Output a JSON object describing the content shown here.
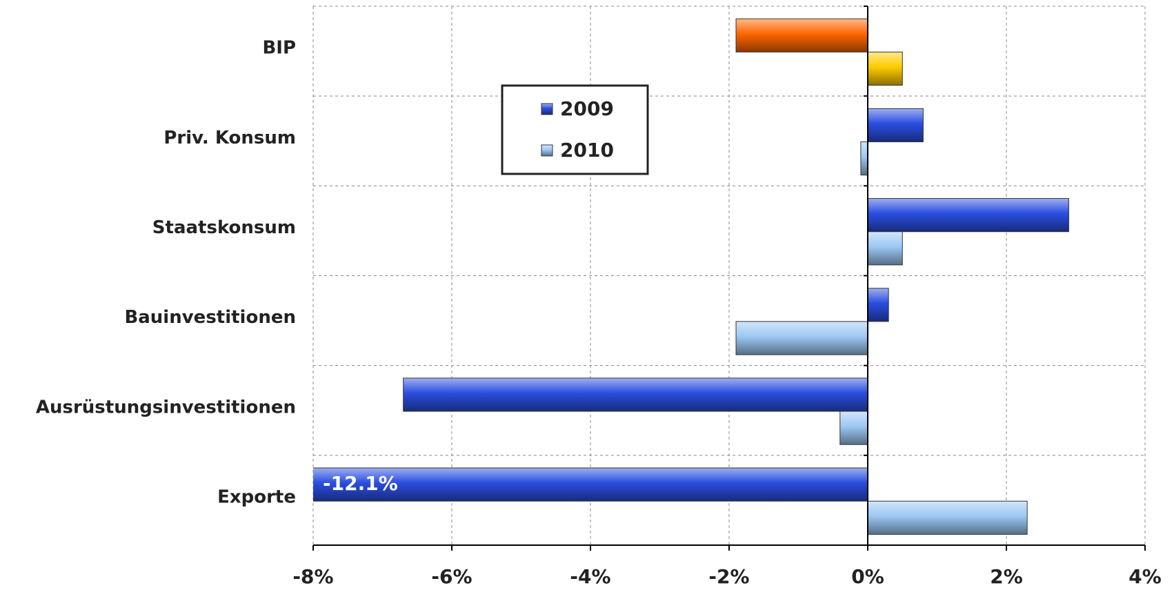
{
  "chart_data": {
    "type": "barh",
    "categories": [
      "BIP",
      "Priv. Konsum",
      "Staatskonsum",
      "Bauinvestitionen",
      "Ausrüstungsinvestitionen",
      "Exporte"
    ],
    "series": [
      {
        "name": "2009",
        "color": "#2a4ee0",
        "colors": [
          "#ff6600",
          "#2a4ee0",
          "#2a4ee0",
          "#2a4ee0",
          "#2a4ee0",
          "#2a4ee0"
        ],
        "values": [
          -1.9,
          0.8,
          2.9,
          0.3,
          -6.7,
          -12.1
        ],
        "value_labels": [
          null,
          null,
          null,
          null,
          null,
          "-12.1%"
        ]
      },
      {
        "name": "2010",
        "color": "#9cc8f4",
        "colors": [
          "#ffcc00",
          "#9cc8f4",
          "#9cc8f4",
          "#9cc8f4",
          "#9cc8f4",
          "#9cc8f4"
        ],
        "values": [
          0.5,
          -0.1,
          0.5,
          -1.9,
          -0.4,
          2.3
        ]
      }
    ],
    "xlim": [
      -8,
      4
    ],
    "xticks": [
      {
        "value": -8,
        "label": "-8%"
      },
      {
        "value": -6,
        "label": "-6%"
      },
      {
        "value": -4,
        "label": "-4%"
      },
      {
        "value": -2,
        "label": "-2%"
      },
      {
        "value": 0,
        "label": "0%"
      },
      {
        "value": 2,
        "label": "2%"
      },
      {
        "value": 4,
        "label": "4%"
      }
    ],
    "grid": true
  }
}
